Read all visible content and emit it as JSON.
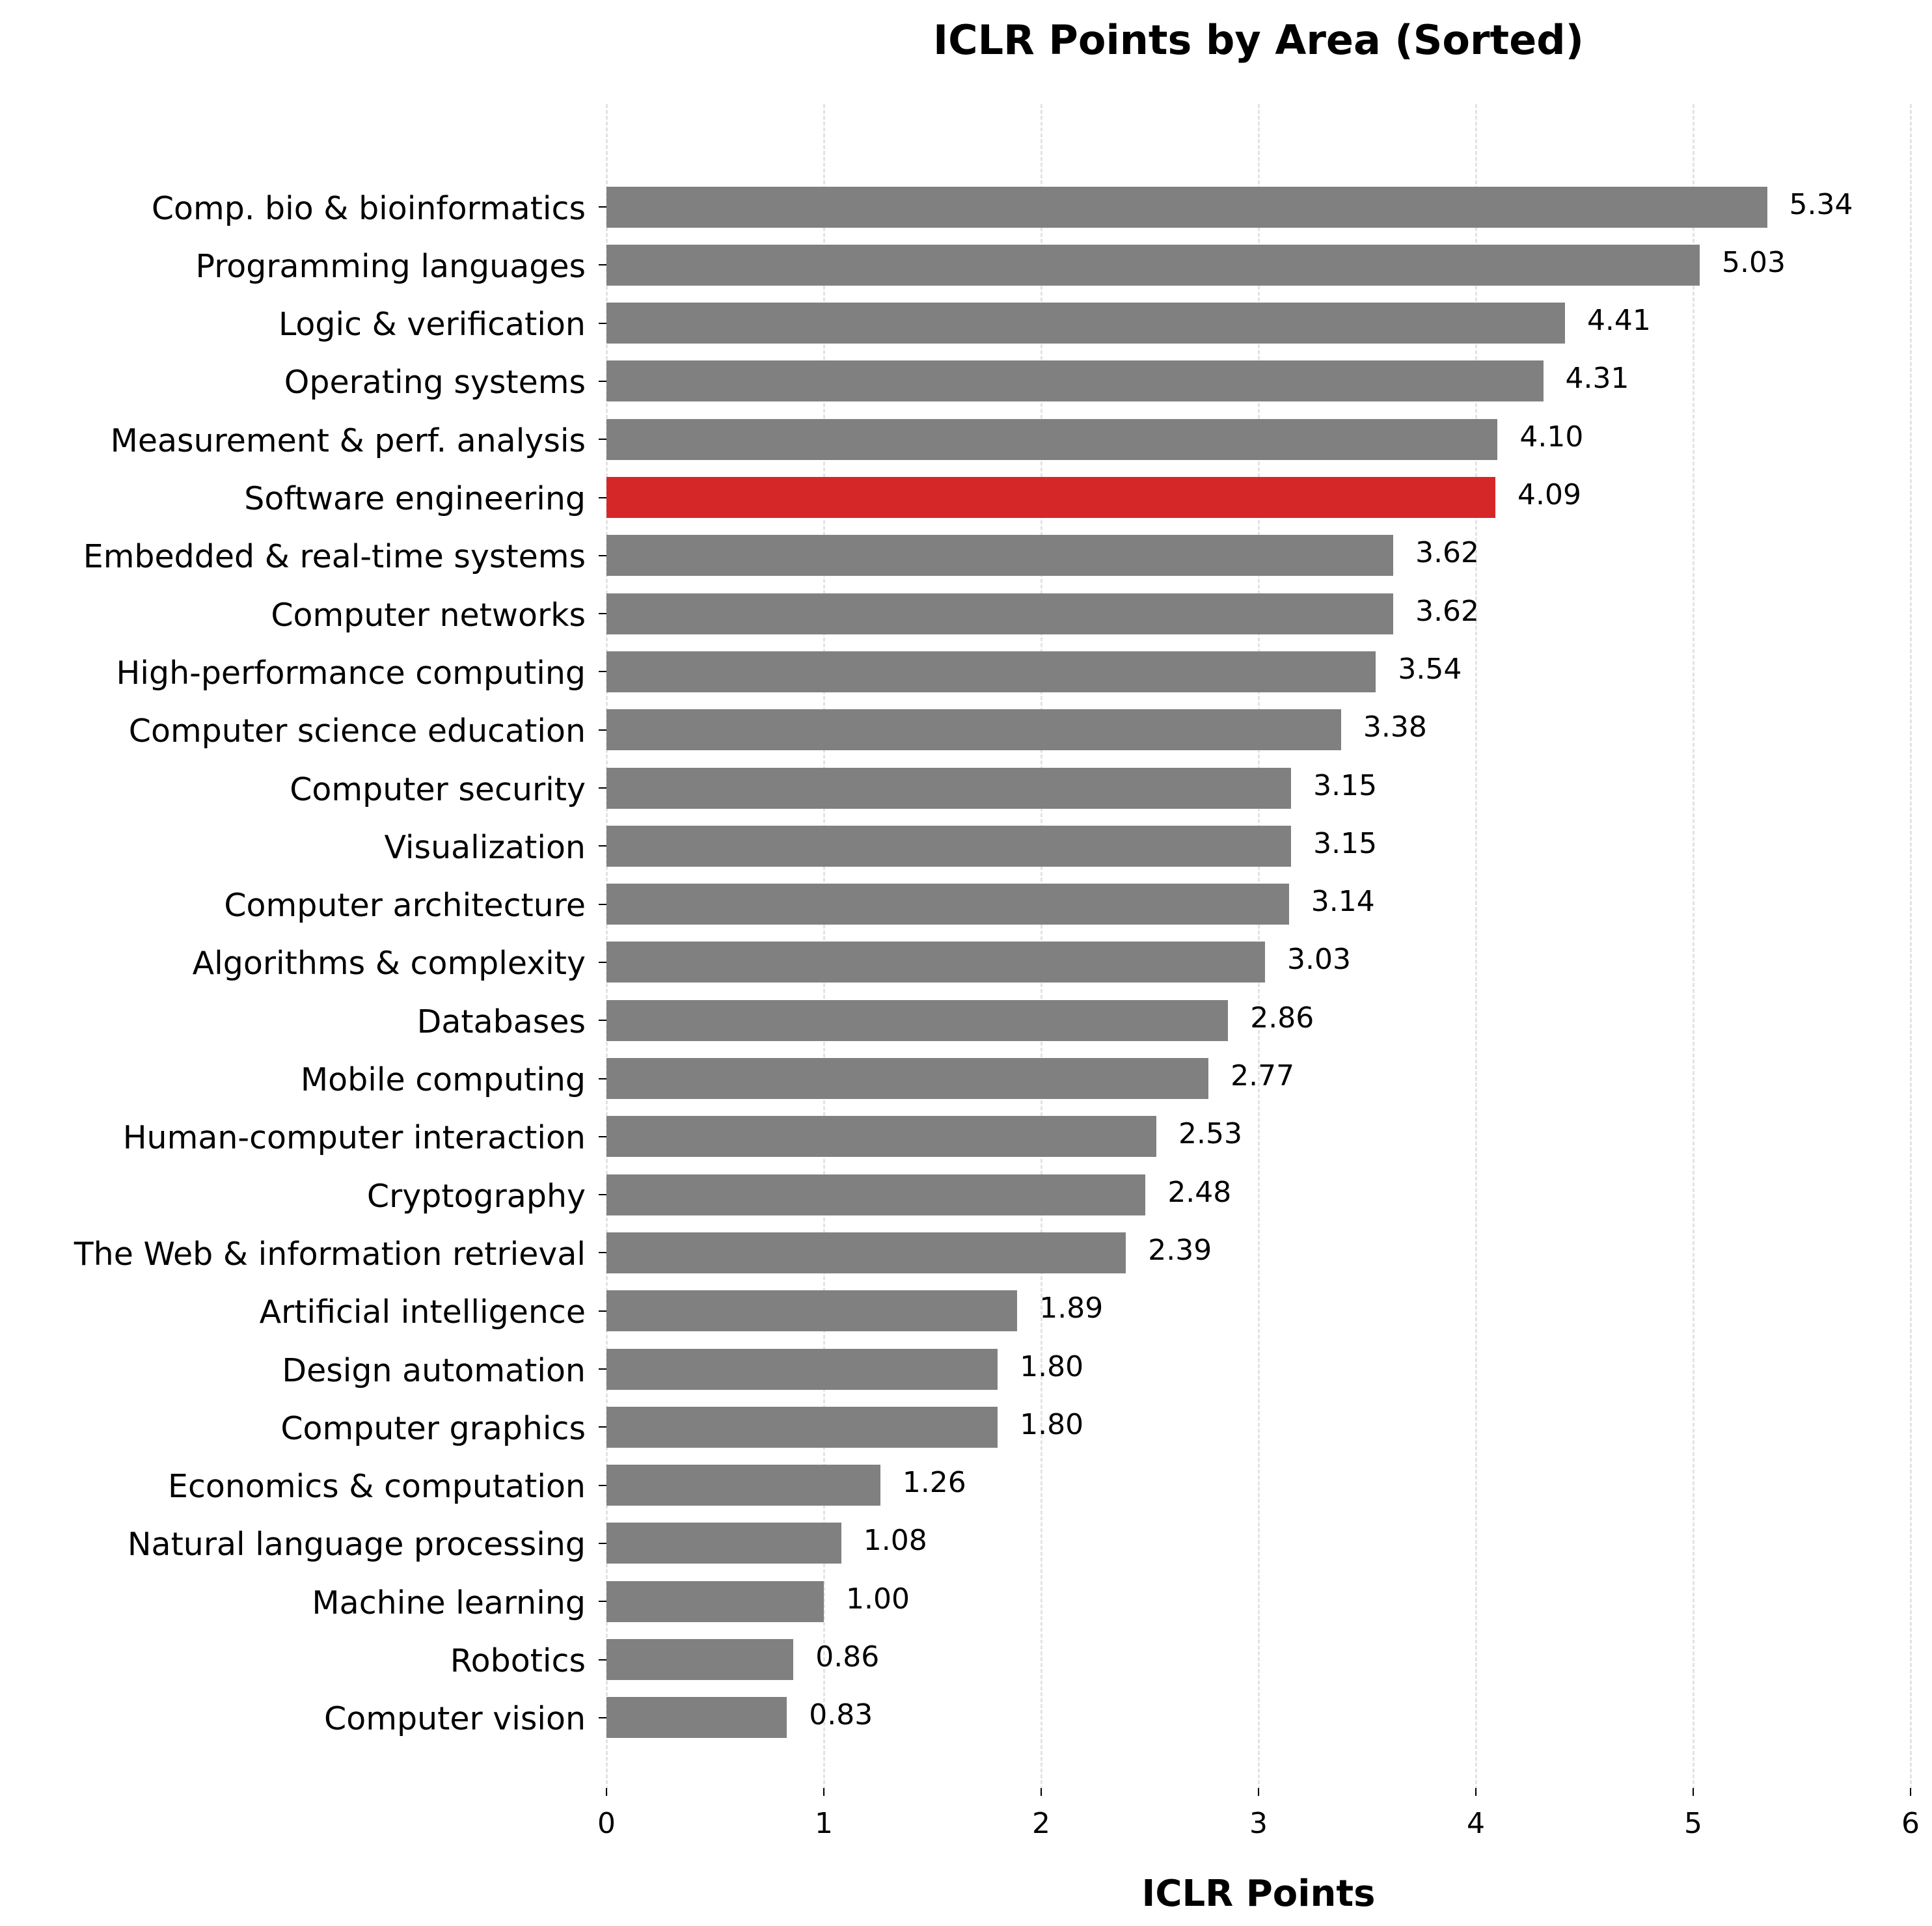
{
  "chart_data": {
    "type": "bar",
    "orientation": "horizontal",
    "title": "ICLR Points by Area (Sorted)",
    "xlabel": "ICLR Points",
    "ylabel": "",
    "xlim": [
      0,
      6
    ],
    "xticks": [
      "0",
      "1",
      "2",
      "3",
      "4",
      "5",
      "6"
    ],
    "grid": "x, dashed, light gray",
    "legend": null,
    "default_color": "#808080",
    "highlight_color": "#d62728",
    "highlighted_category": "Software engineering",
    "categories": [
      "Comp. bio & bioinformatics",
      "Programming languages",
      "Logic & verification",
      "Operating systems",
      "Measurement & perf. analysis",
      "Software engineering",
      "Embedded & real-time systems",
      "Computer networks",
      "High-performance computing",
      "Computer science education",
      "Computer security",
      "Visualization",
      "Computer architecture",
      "Algorithms & complexity",
      "Databases",
      "Mobile computing",
      "Human-computer interaction",
      "Cryptography",
      "The Web & information retrieval",
      "Artificial intelligence",
      "Design automation",
      "Computer graphics",
      "Economics & computation",
      "Natural language processing",
      "Machine learning",
      "Robotics",
      "Computer vision"
    ],
    "values": [
      5.34,
      5.03,
      4.41,
      4.31,
      4.1,
      4.09,
      3.62,
      3.62,
      3.54,
      3.38,
      3.15,
      3.15,
      3.14,
      3.03,
      2.86,
      2.77,
      2.53,
      2.48,
      2.39,
      1.89,
      1.8,
      1.8,
      1.26,
      1.08,
      1.0,
      0.86,
      0.83
    ],
    "value_labels": [
      "5.34",
      "5.03",
      "4.41",
      "4.31",
      "4.10",
      "4.09",
      "3.62",
      "3.62",
      "3.54",
      "3.38",
      "3.15",
      "3.15",
      "3.14",
      "3.03",
      "2.86",
      "2.77",
      "2.53",
      "2.48",
      "2.39",
      "1.89",
      "1.80",
      "1.80",
      "1.26",
      "1.08",
      "1.00",
      "0.86",
      "0.83"
    ]
  }
}
